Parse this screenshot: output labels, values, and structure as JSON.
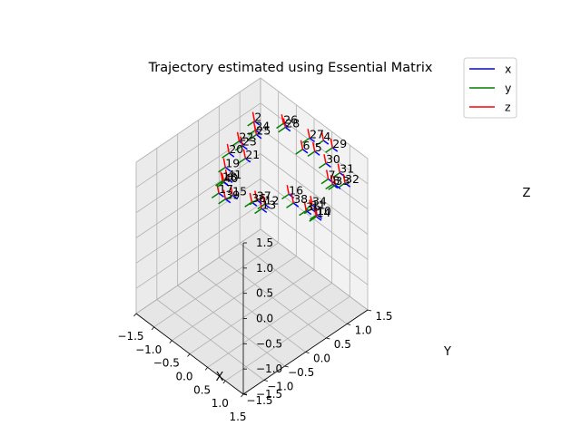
{
  "chart_data": {
    "type": "3d-line",
    "title": "Trajectory estimated using Essential Matrix",
    "xlabel": "X",
    "ylabel": "Y",
    "zlabel": "Z",
    "xlim": [
      -1.5,
      1.5
    ],
    "ylim": [
      -1.5,
      1.5
    ],
    "zlim": [
      -1.5,
      1.5
    ],
    "x_ticks": [
      "−1.5",
      "−1.0",
      "−0.5",
      "0.0",
      "0.5",
      "1.0",
      "1.5"
    ],
    "y_ticks": [
      "−1.5",
      "−1.0",
      "−0.5",
      "0.0",
      "0.5",
      "1.0",
      "1.5"
    ],
    "z_ticks": [
      "−1.5",
      "−1.0",
      "−0.5",
      "0.0",
      "0.5",
      "1.0",
      "1.5"
    ],
    "grid": true,
    "legend_position": "top-right",
    "series": [
      {
        "name": "x",
        "color": "#0000ff"
      },
      {
        "name": "y",
        "color": "#008000"
      },
      {
        "name": "z",
        "color": "#ff0000"
      }
    ],
    "poses": [
      {
        "label": "2",
        "x": -1.03,
        "y": 0.95,
        "z": 1.2
      },
      {
        "label": "4",
        "x": 0.46,
        "y": 1.33,
        "z": 1.4
      },
      {
        "label": "5",
        "x": 0.54,
        "y": 1.05,
        "z": 1.38
      },
      {
        "label": "6",
        "x": 0.18,
        "y": 1.07,
        "z": 1.22
      },
      {
        "label": "7",
        "x": 1.14,
        "y": 0.86,
        "z": 1.26
      },
      {
        "label": "8",
        "x": 1.33,
        "y": 0.8,
        "z": 1.29
      },
      {
        "label": "10",
        "x": 1.53,
        "y": 0.25,
        "z": 1.1
      },
      {
        "label": "11",
        "x": 1.36,
        "y": 0.26,
        "z": 1.12
      },
      {
        "label": "12",
        "x": 0.67,
        "y": -0.27,
        "z": 1.14
      },
      {
        "label": "13",
        "x": 0.68,
        "y": -0.35,
        "z": 1.1
      },
      {
        "label": "14",
        "x": 1.56,
        "y": 0.21,
        "z": 1.1
      },
      {
        "label": "15",
        "x": 0.05,
        "y": -0.51,
        "z": 1.12
      },
      {
        "label": "16",
        "x": 0.5,
        "y": 0.46,
        "z": 0.84
      },
      {
        "label": "17",
        "x": -0.44,
        "y": -0.42,
        "z": 0.85
      },
      {
        "label": "18",
        "x": -0.66,
        "y": -0.14,
        "z": 0.82
      },
      {
        "label": "19",
        "x": -0.79,
        "y": 0.04,
        "z": 0.92
      },
      {
        "label": "20",
        "x": -0.93,
        "y": 0.25,
        "z": 1.01
      },
      {
        "label": "21",
        "x": -0.6,
        "y": 0.36,
        "z": 1.02
      },
      {
        "label": "22",
        "x": -1.03,
        "y": 0.58,
        "z": 1.01
      },
      {
        "label": "23",
        "x": -0.93,
        "y": 0.57,
        "z": 0.98
      },
      {
        "label": "24",
        "x": -0.97,
        "y": 0.92,
        "z": 1.07
      },
      {
        "label": "25",
        "x": -0.85,
        "y": 0.84,
        "z": 1.09
      },
      {
        "label": "26",
        "x": -0.65,
        "y": 1.32,
        "z": 1.15
      },
      {
        "label": "27",
        "x": 0.13,
        "y": 1.28,
        "z": 1.3
      },
      {
        "label": "28",
        "x": -0.55,
        "y": 1.28,
        "z": 1.15
      },
      {
        "label": "29",
        "x": 0.84,
        "y": 1.22,
        "z": 1.52
      },
      {
        "label": "30",
        "x": 0.91,
        "y": 1.0,
        "z": 1.37
      },
      {
        "label": "31",
        "x": 1.3,
        "y": 1.0,
        "z": 1.39
      },
      {
        "label": "32",
        "x": 1.54,
        "y": 0.92,
        "z": 1.36
      },
      {
        "label": "33",
        "x": 1.42,
        "y": 0.79,
        "z": 1.33
      },
      {
        "label": "34",
        "x": 1.26,
        "y": 0.37,
        "z": 1.08
      },
      {
        "label": "35",
        "x": 1.23,
        "y": 0.25,
        "z": 1.02
      },
      {
        "label": "36",
        "x": 0.46,
        "y": -0.4,
        "z": 1.14
      },
      {
        "label": "37",
        "x": 0.54,
        "y": -0.35,
        "z": 1.2
      },
      {
        "label": "38",
        "x": 0.93,
        "y": 0.2,
        "z": 1.04
      },
      {
        "label": "39",
        "x": -0.01,
        "y": -0.63,
        "z": 1.08
      },
      {
        "label": "40",
        "x": -0.24,
        "y": -0.47,
        "z": 1.2
      },
      {
        "label": "41",
        "x": -0.56,
        "y": -0.11,
        "z": 0.9
      }
    ],
    "axis_length": 0.14
  }
}
